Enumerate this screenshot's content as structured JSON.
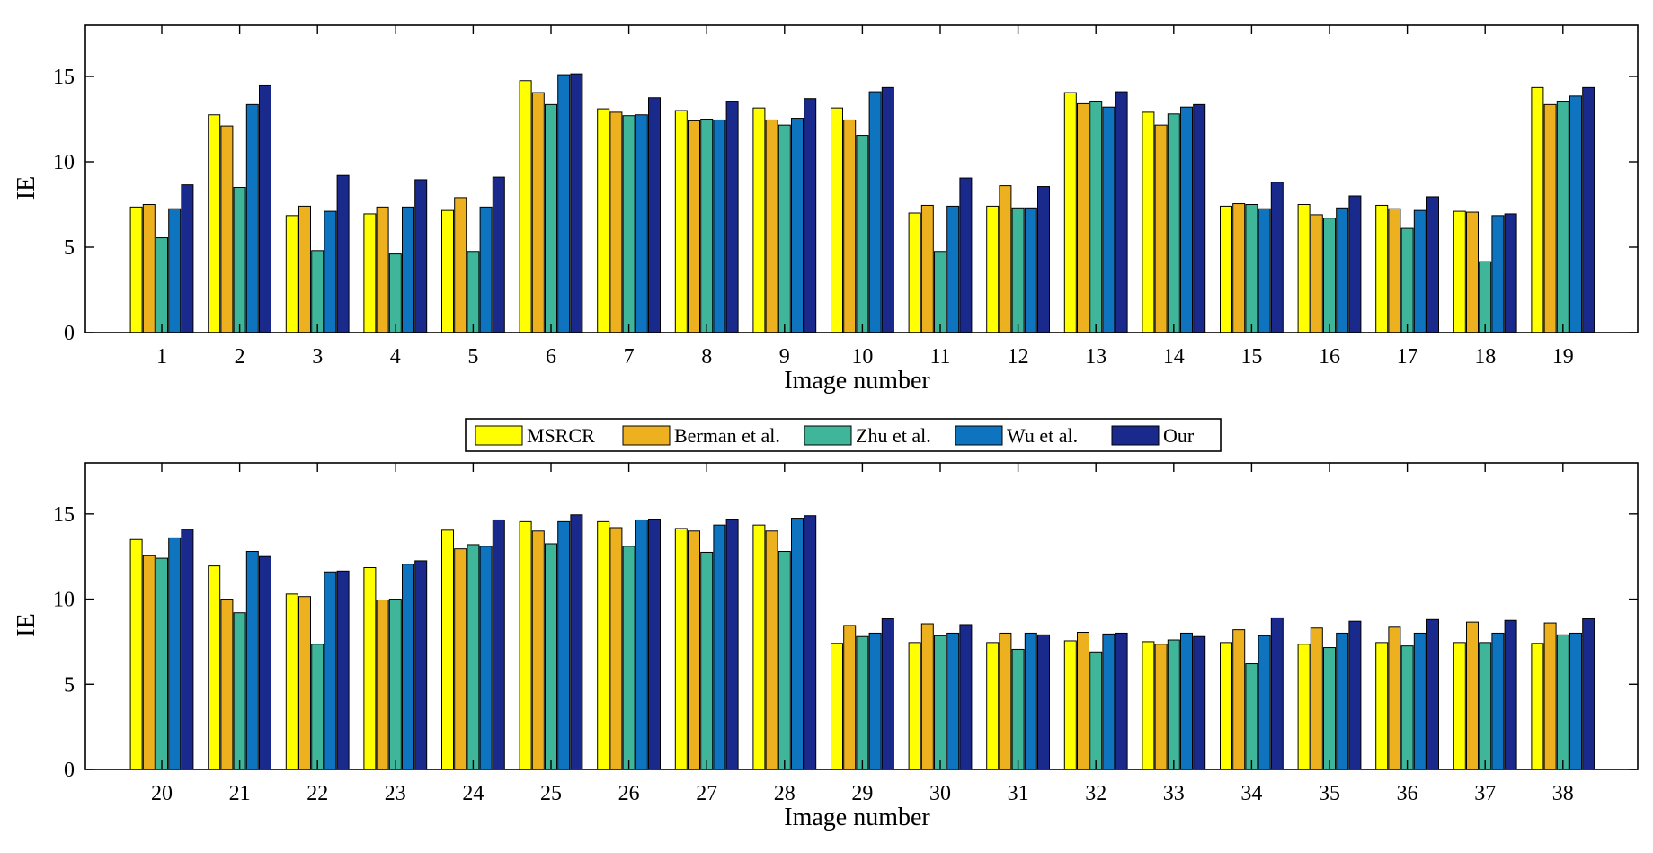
{
  "chart_data": [
    {
      "type": "bar",
      "xlabel": "Image number",
      "ylabel": "IE",
      "ylim": [
        0,
        18
      ],
      "yticks": [
        0,
        5,
        10,
        15
      ],
      "grid": false,
      "categories": [
        "1",
        "2",
        "3",
        "4",
        "5",
        "6",
        "7",
        "8",
        "9",
        "10",
        "11",
        "12",
        "13",
        "14",
        "15",
        "16",
        "17",
        "18",
        "19"
      ],
      "series": [
        {
          "name": "MSRCR",
          "color": "#ffff00",
          "values": [
            7.35,
            12.75,
            6.85,
            6.95,
            7.15,
            14.75,
            13.1,
            13.0,
            13.15,
            13.15,
            7.0,
            7.4,
            14.05,
            12.9,
            7.4,
            7.5,
            7.45,
            7.1,
            14.35
          ]
        },
        {
          "name": "Berman et al.",
          "color": "#edb120",
          "values": [
            7.5,
            12.1,
            7.4,
            7.35,
            7.9,
            14.05,
            12.9,
            12.4,
            12.45,
            12.45,
            7.45,
            8.6,
            13.4,
            12.15,
            7.55,
            6.9,
            7.25,
            7.05,
            13.35
          ]
        },
        {
          "name": "Zhu et al.",
          "color": "#3fb59a",
          "values": [
            5.55,
            8.5,
            4.8,
            4.6,
            4.75,
            13.35,
            12.7,
            12.5,
            12.15,
            11.55,
            4.75,
            7.3,
            13.55,
            12.8,
            7.5,
            6.7,
            6.1,
            4.15,
            13.55
          ]
        },
        {
          "name": "Wu et al.",
          "color": "#0f74c0",
          "values": [
            7.25,
            13.35,
            7.1,
            7.35,
            7.35,
            15.1,
            12.75,
            12.45,
            12.55,
            14.1,
            7.4,
            7.3,
            13.2,
            13.2,
            7.25,
            7.3,
            7.15,
            6.85,
            13.85
          ]
        },
        {
          "name": "Our",
          "color": "#1a2a8c",
          "values": [
            8.65,
            14.45,
            9.2,
            8.95,
            9.1,
            15.15,
            13.75,
            13.55,
            13.7,
            14.35,
            9.05,
            8.55,
            14.1,
            13.35,
            8.8,
            8.0,
            7.95,
            6.95,
            14.35
          ]
        }
      ]
    },
    {
      "type": "bar",
      "xlabel": "Image number",
      "ylabel": "IE",
      "ylim": [
        0,
        18
      ],
      "yticks": [
        0,
        5,
        10,
        15
      ],
      "grid": false,
      "categories": [
        "20",
        "21",
        "22",
        "23",
        "24",
        "25",
        "26",
        "27",
        "28",
        "29",
        "30",
        "31",
        "32",
        "33",
        "34",
        "35",
        "36",
        "37",
        "38"
      ],
      "series": [
        {
          "name": "MSRCR",
          "color": "#ffff00",
          "values": [
            13.5,
            11.95,
            10.3,
            11.85,
            14.05,
            14.55,
            14.55,
            14.15,
            14.35,
            7.4,
            7.45,
            7.45,
            7.55,
            7.5,
            7.45,
            7.35,
            7.45,
            7.45,
            7.4
          ]
        },
        {
          "name": "Berman et al.",
          "color": "#edb120",
          "values": [
            12.55,
            10.0,
            10.15,
            9.95,
            12.95,
            14.0,
            14.2,
            14.0,
            14.0,
            8.45,
            8.55,
            8.0,
            8.05,
            7.35,
            8.2,
            8.3,
            8.35,
            8.65,
            8.6
          ]
        },
        {
          "name": "Zhu et al.",
          "color": "#3fb59a",
          "values": [
            12.4,
            9.2,
            7.35,
            10.0,
            13.2,
            13.25,
            13.1,
            12.75,
            12.8,
            7.8,
            7.85,
            7.05,
            6.9,
            7.6,
            6.2,
            7.15,
            7.25,
            7.45,
            7.9
          ]
        },
        {
          "name": "Wu et al.",
          "color": "#0f74c0",
          "values": [
            13.6,
            12.8,
            11.6,
            12.05,
            13.1,
            14.55,
            14.65,
            14.35,
            14.75,
            8.0,
            8.0,
            8.0,
            7.95,
            8.0,
            7.85,
            8.0,
            8.0,
            8.0,
            8.0
          ]
        },
        {
          "name": "Our",
          "color": "#1a2a8c",
          "values": [
            14.1,
            12.5,
            11.65,
            12.25,
            14.65,
            14.95,
            14.7,
            14.7,
            14.9,
            8.85,
            8.5,
            7.9,
            8.0,
            7.8,
            8.9,
            8.7,
            8.8,
            8.75,
            8.85
          ]
        }
      ]
    }
  ],
  "legend": {
    "position": "between-panels",
    "items": [
      "MSRCR",
      "Berman et al.",
      "Zhu et al.",
      "Wu et al.",
      "Our"
    ]
  }
}
